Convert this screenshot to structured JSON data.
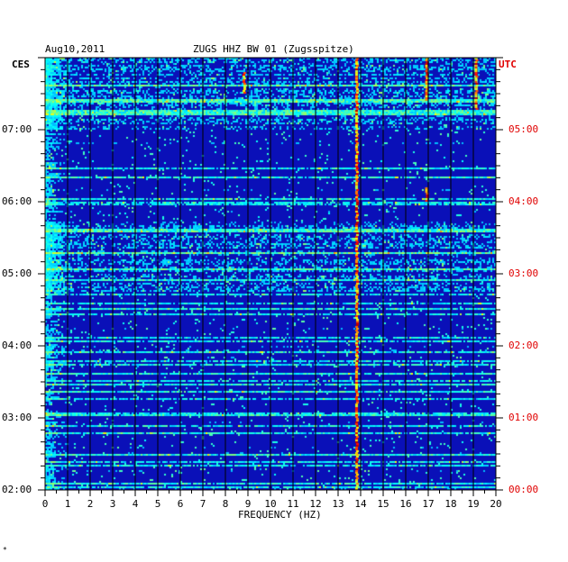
{
  "header": {
    "date": "Aug10,2011",
    "station": "ZUGS HHZ BW 01 (Zugsspitze)",
    "left_zone": "CES",
    "right_zone": "UTC"
  },
  "footer_mark": "*",
  "colors": {
    "background": "#0a10b8",
    "utc_labels": "#e00000",
    "grid": "#000000"
  },
  "chart_data": {
    "type": "heatmap",
    "title": "ZUGS HHZ BW 01 (Zugsspitze)",
    "date": "Aug10,2011",
    "xlabel": "FREQUENCY (HZ)",
    "ylabel": "CES",
    "y2label": "UTC",
    "xlim": [
      0,
      20
    ],
    "x_ticks": [
      "0",
      "1",
      "2",
      "3",
      "4",
      "5",
      "6",
      "7",
      "8",
      "9",
      "10",
      "11",
      "12",
      "13",
      "14",
      "15",
      "16",
      "17",
      "18",
      "19",
      "20"
    ],
    "y_ticks_local": [
      "07:00",
      "06:00",
      "05:00",
      "04:00",
      "03:00",
      "02:00"
    ],
    "y_ticks_utc": [
      "05:00",
      "04:00",
      "03:00",
      "02:00",
      "01:00",
      "00:00"
    ],
    "y_range_local_hours": [
      2.0,
      8.0
    ],
    "grid": true,
    "colormap": "jet",
    "features": [
      {
        "name": "tremor line",
        "freq_hz": 13.8,
        "start_hour": 2.0,
        "end_hour": 8.0
      },
      {
        "name": "streak",
        "freq_hz": 16.9,
        "start_hour": 7.4,
        "end_hour": 8.0
      },
      {
        "name": "streak",
        "freq_hz": 19.1,
        "start_hour": 7.3,
        "end_hour": 8.0
      },
      {
        "name": "streak",
        "freq_hz": 16.9,
        "start_hour": 6.0,
        "end_hour": 6.2
      },
      {
        "name": "streak",
        "freq_hz": 8.8,
        "start_hour": 7.5,
        "end_hour": 7.8
      }
    ]
  }
}
